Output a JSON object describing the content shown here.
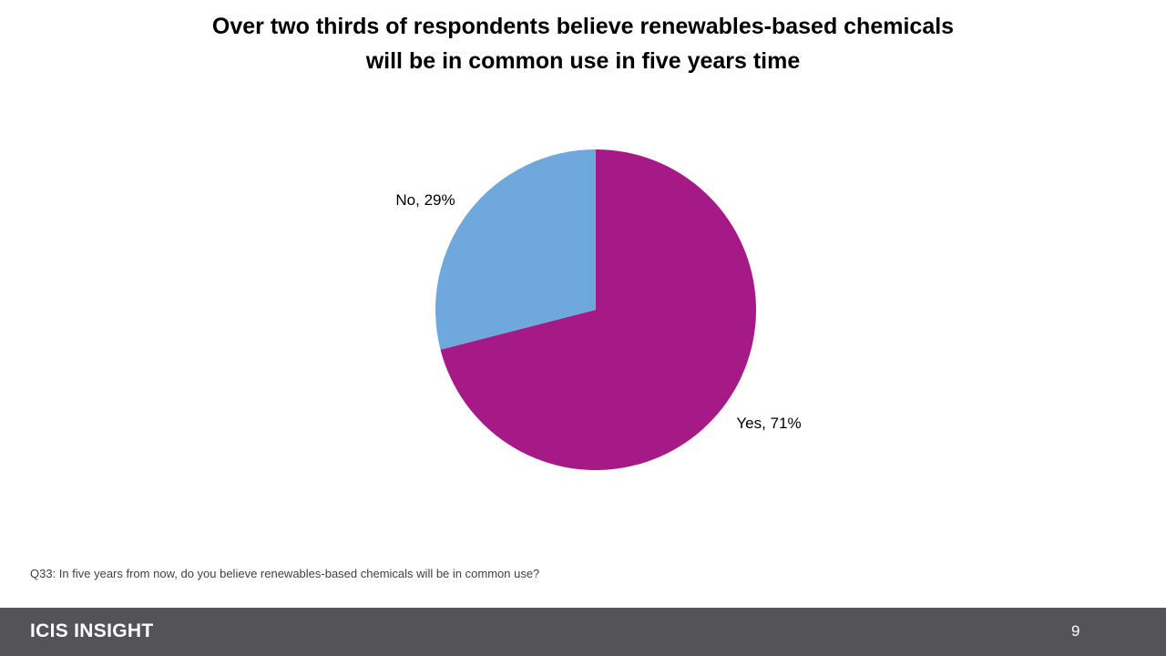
{
  "slide": {
    "title_line1": "Over two thirds of respondents believe renewables-based chemicals",
    "title_line2": "will be in common use in five years time",
    "question": "Q33: In five years from now, do you believe renewables-based chemicals will be in common use?",
    "brand": "ICIS INSIGHT",
    "page_number": "9"
  },
  "chart_data": {
    "type": "pie",
    "title": "",
    "slices": [
      {
        "name": "Yes",
        "value": 71,
        "label": "Yes, 71%",
        "color": "#A51A87"
      },
      {
        "name": "No",
        "value": 29,
        "label": "No, 29%",
        "color": "#6FA8DC"
      }
    ],
    "start_angle_deg": 0,
    "direction": "clockwise",
    "legend": "none",
    "data_labels": "outside"
  },
  "colors": {
    "footer_bar": "#545358",
    "footer_text": "#FFFFFF",
    "title_text": "#000000"
  }
}
